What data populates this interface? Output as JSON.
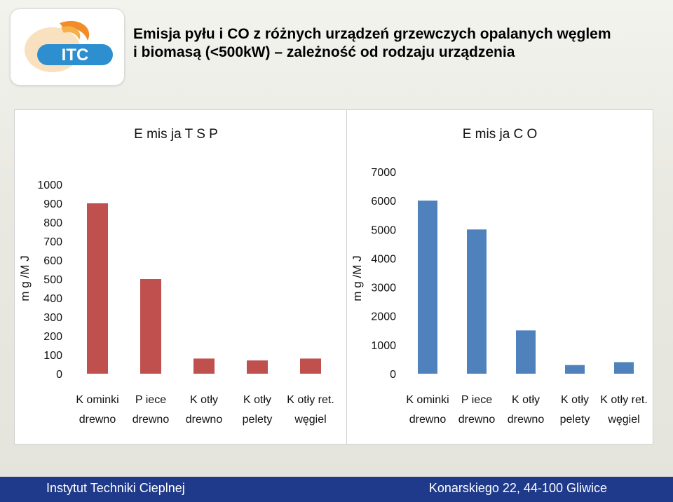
{
  "header": {
    "logo_text": "ITC",
    "title_line1": "Emisja pyłu i CO z różnych urządzeń grzewczych opalanych węglem",
    "title_line2": "i biomasą (<500kW) – zależność od rodzaju urządzenia"
  },
  "footer": {
    "left": "Instytut Techniki Cieplnej",
    "right": "Konarskiego 22, 44-100 Gliwice"
  },
  "colors": {
    "tsp_bar": "#c0504d",
    "co_bar": "#4f81bd",
    "footer_bg": "#1f3a8a"
  },
  "chart_data": [
    {
      "type": "bar",
      "title": "E mis ja T S P",
      "ylabel": "m g /M J",
      "ylim": [
        0,
        1000
      ],
      "yticks": [
        0,
        100,
        200,
        300,
        400,
        500,
        600,
        700,
        800,
        900,
        1000
      ],
      "categories": [
        [
          "K ominki",
          "drewno"
        ],
        [
          "P iece",
          "drewno"
        ],
        [
          "K otły",
          "drewno"
        ],
        [
          "K otły",
          "pelety"
        ],
        [
          "K otły  ret.",
          "węgiel"
        ]
      ],
      "values": [
        900,
        500,
        80,
        70,
        80
      ],
      "grid": false,
      "color": "#c0504d"
    },
    {
      "type": "bar",
      "title": "E mis ja C O",
      "ylabel": "m g /M J",
      "ylim": [
        0,
        7000
      ],
      "yticks": [
        0,
        1000,
        2000,
        3000,
        4000,
        5000,
        6000,
        7000
      ],
      "categories": [
        [
          "K ominki",
          "drewno"
        ],
        [
          "P iece",
          "drewno"
        ],
        [
          "K otły",
          "drewno"
        ],
        [
          "K otły",
          "pelety"
        ],
        [
          "K otły  ret.",
          "węgiel"
        ]
      ],
      "values": [
        6000,
        5000,
        1500,
        300,
        400
      ],
      "grid": false,
      "color": "#4f81bd"
    }
  ]
}
